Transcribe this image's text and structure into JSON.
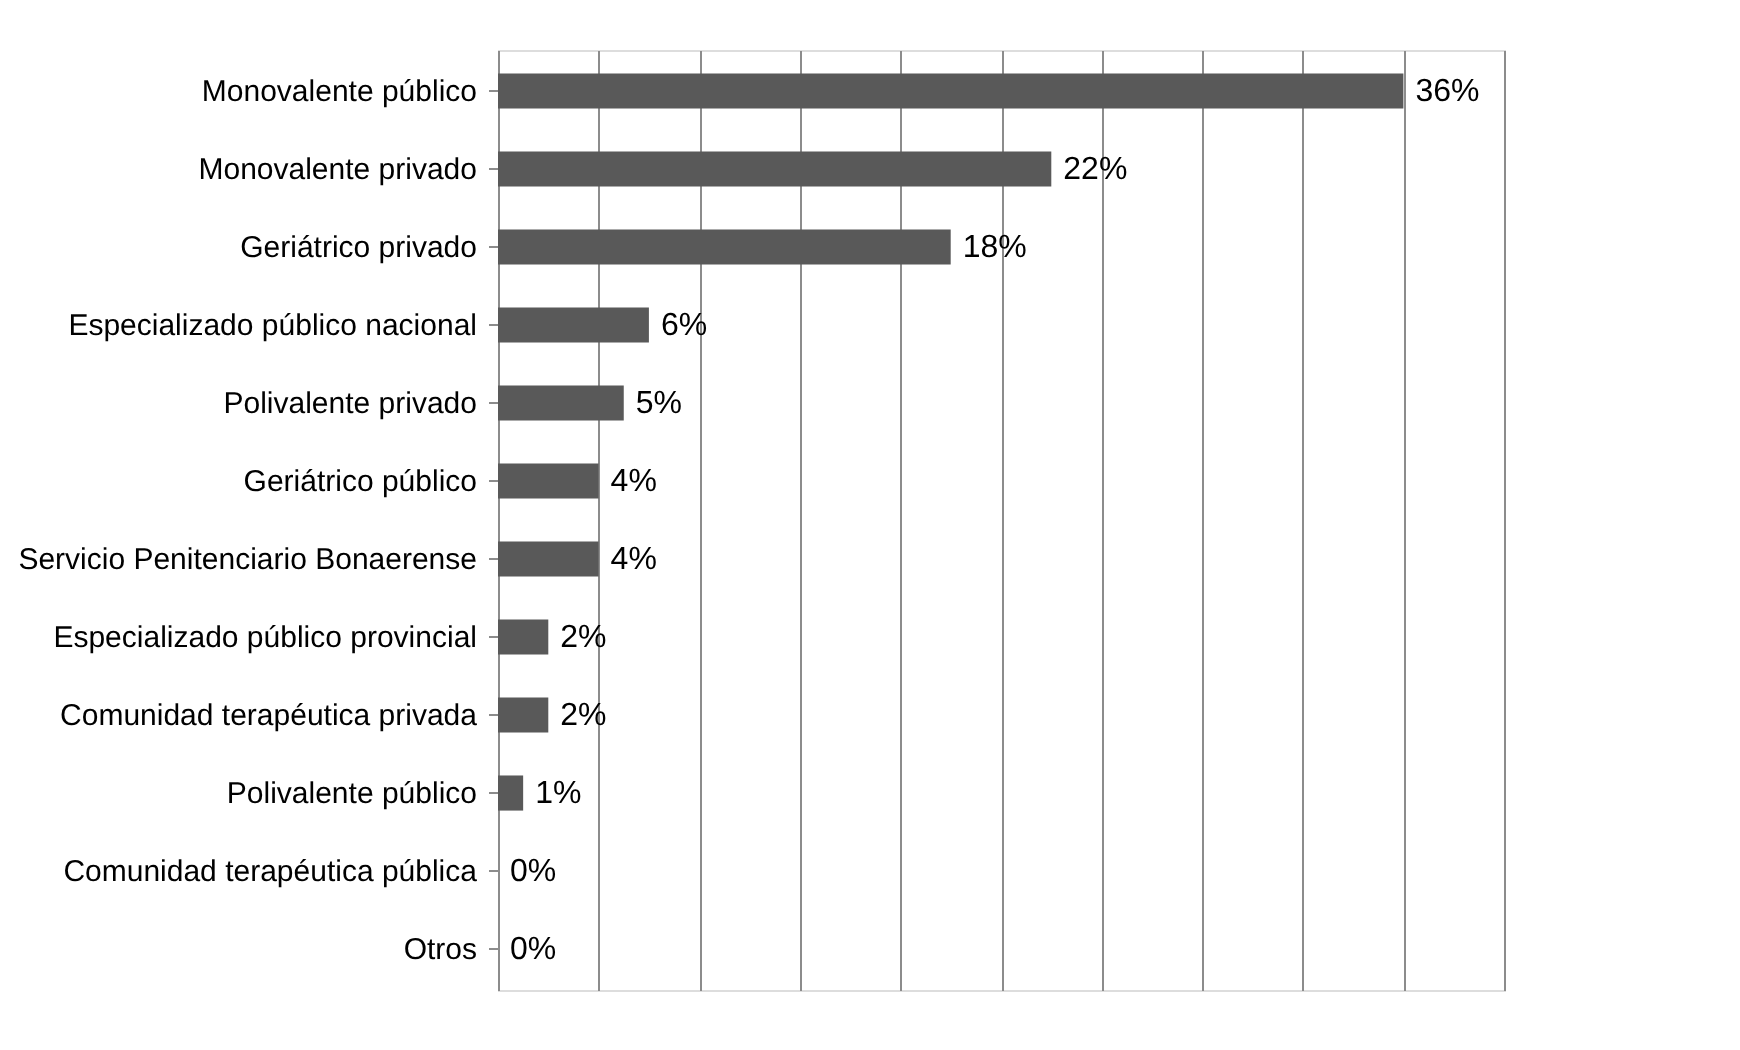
{
  "chart_data": {
    "type": "bar",
    "orientation": "horizontal",
    "categories": [
      "Monovalente público",
      "Monovalente privado",
      "Geriátrico privado",
      "Especializado público nacional",
      "Polivalente privado",
      "Geriátrico público",
      "Servicio Penitenciario Bonaerense",
      "Especializado público provincial",
      "Comunidad terapéutica privada",
      "Polivalente público",
      "Comunidad terapéutica pública",
      "Otros"
    ],
    "values": [
      36,
      22,
      18,
      6,
      5,
      4,
      4,
      2,
      2,
      1,
      0,
      0
    ],
    "value_labels": [
      "36%",
      "22%",
      "18%",
      "6%",
      "5%",
      "4%",
      "4%",
      "2%",
      "2%",
      "1%",
      "0%",
      "0%"
    ],
    "color": "#595959",
    "xlim": [
      0,
      40
    ],
    "xticks": [
      {
        "value": 0,
        "label": null
      },
      {
        "value": 4,
        "label": null
      },
      {
        "value": 8,
        "label": null
      },
      {
        "value": 12,
        "label": null
      },
      {
        "value": 16,
        "label": null
      },
      {
        "value": 20,
        "label": null
      },
      {
        "value": 24,
        "label": null
      },
      {
        "value": 28,
        "label": null
      },
      {
        "value": 32,
        "label": null
      },
      {
        "value": 36,
        "label": null
      },
      {
        "value": 40,
        "label": null
      }
    ],
    "grid": "x",
    "tick_labels": "y"
  }
}
